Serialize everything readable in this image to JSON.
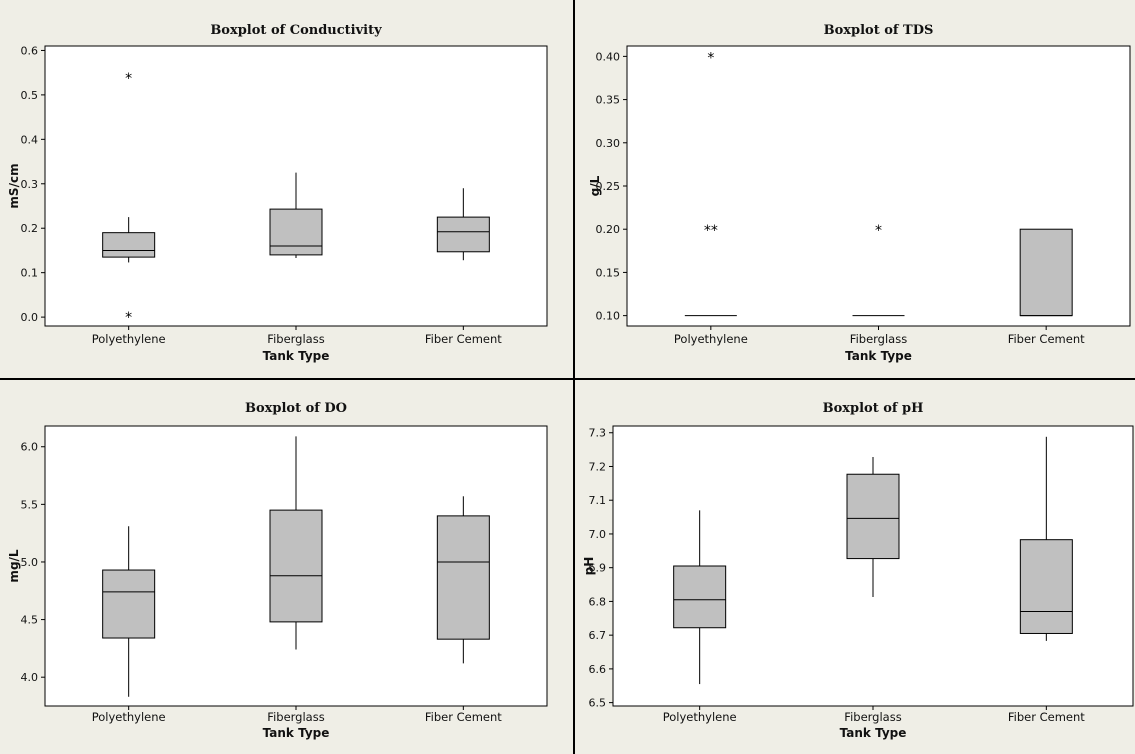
{
  "chart_data": [
    {
      "type": "box",
      "title": "Boxplot of Conductivity",
      "xlabel": "Tank Type",
      "ylabel": "mS/cm",
      "ylim": [
        -0.02,
        0.61
      ],
      "yticks": [
        0.0,
        0.1,
        0.2,
        0.3,
        0.4,
        0.5,
        0.6
      ],
      "ytick_labels": [
        "0.0",
        "0.1",
        "0.2",
        "0.3",
        "0.4",
        "0.5",
        "0.6"
      ],
      "categories": [
        "Polyethylene",
        "Fiberglass",
        "Fiber Cement"
      ],
      "boxes": [
        {
          "whisker_low": 0.123,
          "q1": 0.135,
          "median": 0.15,
          "q3": 0.19,
          "whisker_high": 0.225,
          "outliers": [
            0.54,
            0.003
          ]
        },
        {
          "whisker_low": 0.133,
          "q1": 0.14,
          "median": 0.16,
          "q3": 0.243,
          "whisker_high": 0.325,
          "outliers": []
        },
        {
          "whisker_low": 0.128,
          "q1": 0.147,
          "median": 0.192,
          "q3": 0.225,
          "whisker_high": 0.29,
          "outliers": []
        }
      ]
    },
    {
      "type": "box",
      "title": "Boxplot of TDS",
      "xlabel": "Tank Type",
      "ylabel": "g/L",
      "ylim": [
        0.088,
        0.412
      ],
      "yticks": [
        0.1,
        0.15,
        0.2,
        0.25,
        0.3,
        0.35,
        0.4
      ],
      "ytick_labels": [
        "0.10",
        "0.15",
        "0.20",
        "0.25",
        "0.30",
        "0.35",
        "0.40"
      ],
      "categories": [
        "Polyethylene",
        "Fiberglass",
        "Fiber Cement"
      ],
      "boxes": [
        {
          "whisker_low": 0.1,
          "q1": 0.1,
          "median": 0.1,
          "q3": 0.1,
          "whisker_high": 0.1,
          "outliers": [
            0.4,
            0.2,
            0.2
          ]
        },
        {
          "whisker_low": 0.1,
          "q1": 0.1,
          "median": 0.1,
          "q3": 0.1,
          "whisker_high": 0.1,
          "outliers": [
            0.2
          ]
        },
        {
          "whisker_low": 0.1,
          "q1": 0.1,
          "median": 0.1,
          "q3": 0.2,
          "whisker_high": 0.2,
          "outliers": []
        }
      ]
    },
    {
      "type": "box",
      "title": "Boxplot of DO",
      "xlabel": "Tank Type",
      "ylabel": "mg/L",
      "ylim": [
        3.75,
        6.18
      ],
      "yticks": [
        4.0,
        4.5,
        5.0,
        5.5,
        6.0
      ],
      "ytick_labels": [
        "4.0",
        "4.5",
        "5.0",
        "5.5",
        "6.0"
      ],
      "categories": [
        "Polyethylene",
        "Fiberglass",
        "Fiber Cement"
      ],
      "boxes": [
        {
          "whisker_low": 3.83,
          "q1": 4.34,
          "median": 4.74,
          "q3": 4.93,
          "whisker_high": 5.31,
          "outliers": []
        },
        {
          "whisker_low": 4.24,
          "q1": 4.48,
          "median": 4.88,
          "q3": 5.45,
          "whisker_high": 6.09,
          "outliers": []
        },
        {
          "whisker_low": 4.12,
          "q1": 4.33,
          "median": 5.0,
          "q3": 5.4,
          "whisker_high": 5.57,
          "outliers": []
        }
      ]
    },
    {
      "type": "box",
      "title": "Boxplot of pH",
      "xlabel": "Tank Type",
      "ylabel": "pH",
      "ylim": [
        6.49,
        7.32
      ],
      "yticks": [
        6.5,
        6.6,
        6.7,
        6.8,
        6.9,
        7.0,
        7.1,
        7.2,
        7.3
      ],
      "ytick_labels": [
        "6.5",
        "6.6",
        "6.7",
        "6.8",
        "6.9",
        "7.0",
        "7.1",
        "7.2",
        "7.3"
      ],
      "categories": [
        "Polyethylene",
        "Fiberglass",
        "Fiber Cement"
      ],
      "boxes": [
        {
          "whisker_low": 6.555,
          "q1": 6.722,
          "median": 6.805,
          "q3": 6.905,
          "whisker_high": 7.07,
          "outliers": []
        },
        {
          "whisker_low": 6.813,
          "q1": 6.927,
          "median": 7.046,
          "q3": 7.177,
          "whisker_high": 7.228,
          "outliers": []
        },
        {
          "whisker_low": 6.683,
          "q1": 6.705,
          "median": 6.77,
          "q3": 6.983,
          "whisker_high": 7.288,
          "outliers": []
        }
      ]
    }
  ]
}
